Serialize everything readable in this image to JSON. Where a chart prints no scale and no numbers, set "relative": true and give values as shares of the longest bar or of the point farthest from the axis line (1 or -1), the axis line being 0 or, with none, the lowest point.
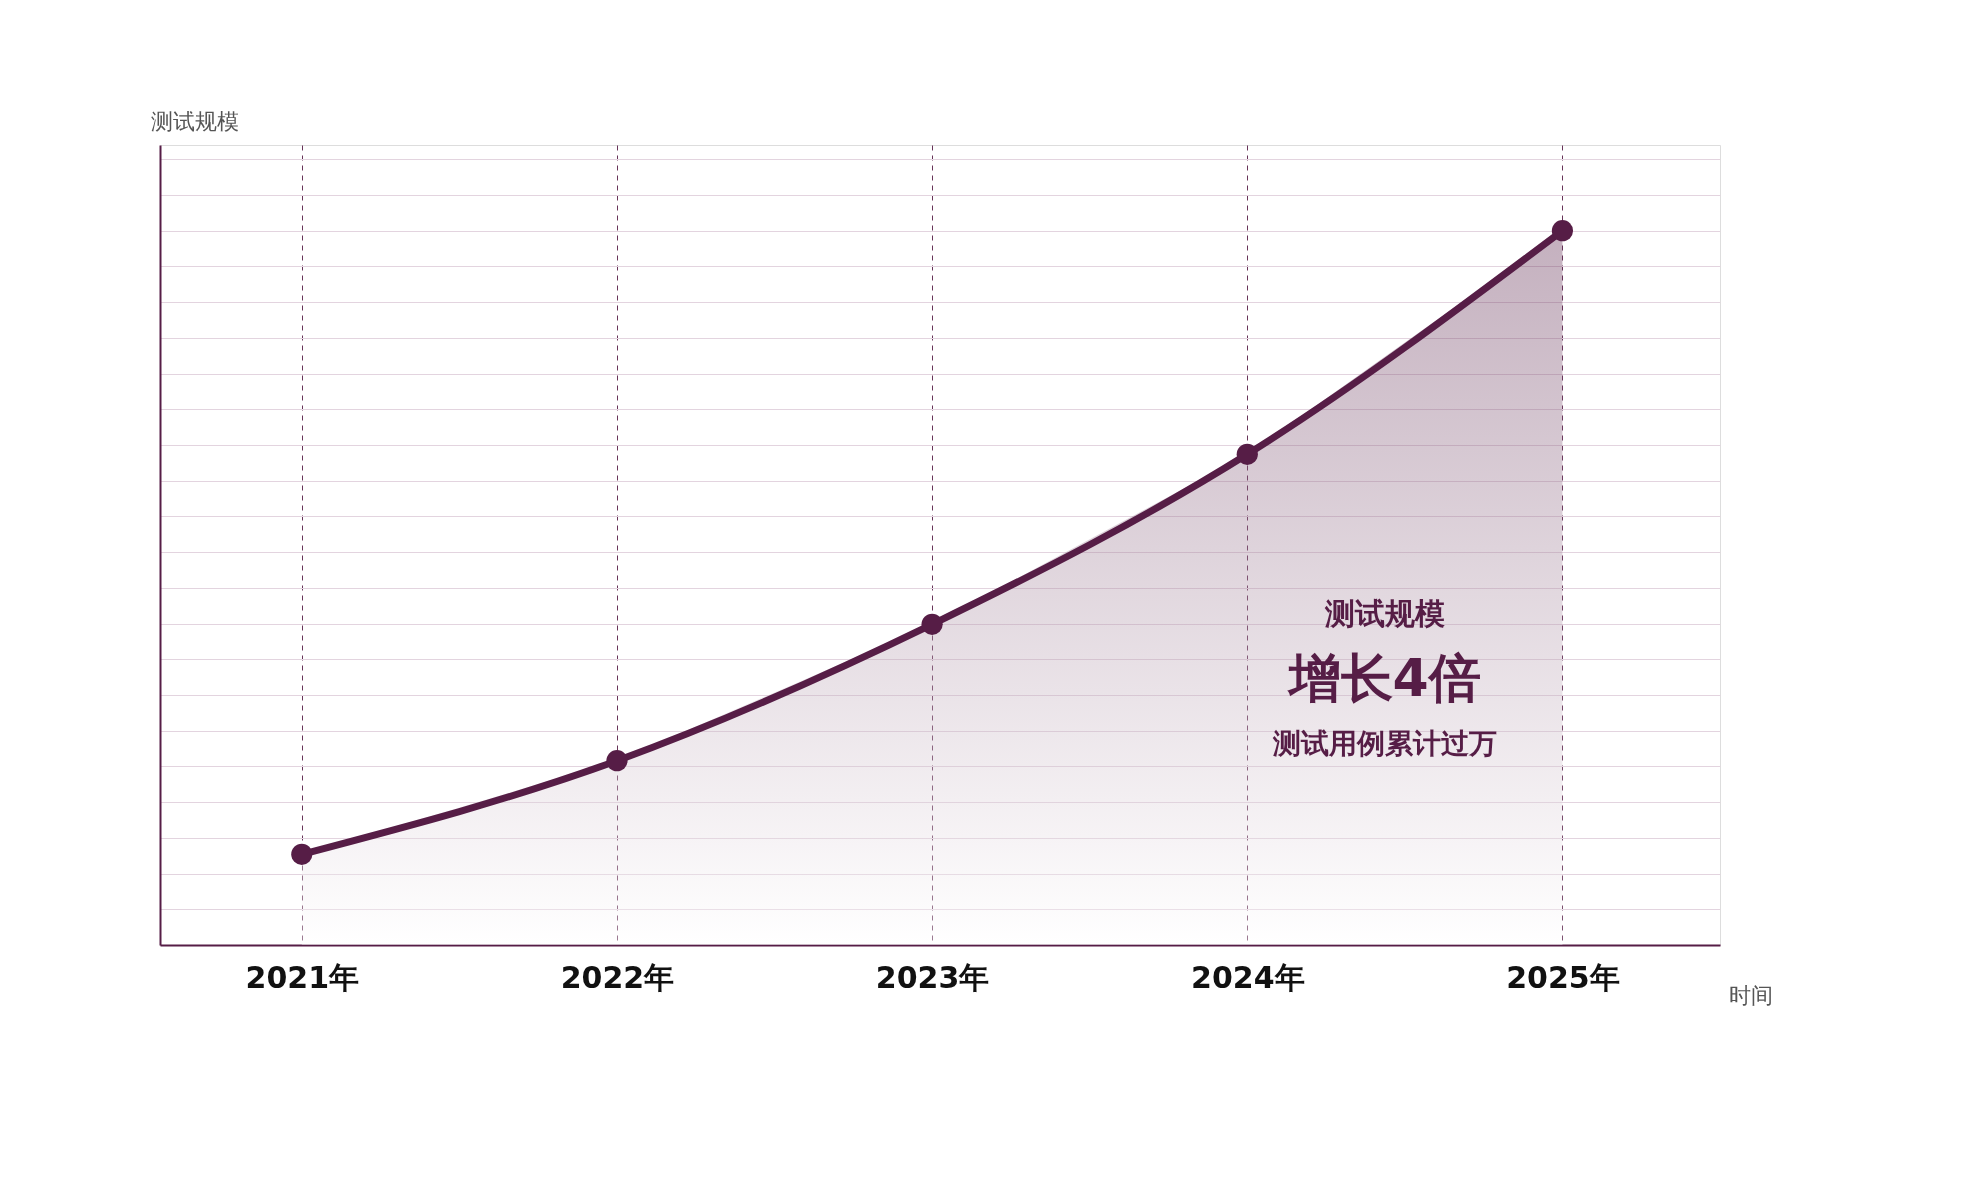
{
  "chart_data": {
    "type": "area",
    "relative": true,
    "ylabel": "测试规模",
    "xlabel": "时间",
    "categories": [
      "2021年",
      "2022年",
      "2023年",
      "2024年",
      "2025年"
    ],
    "series": [
      {
        "color": "#561d46",
        "values": [
          0.127,
          0.258,
          0.449,
          0.687,
          1
        ]
      }
    ],
    "marker": "circle",
    "grid": true,
    "annotations": [
      "测试规模",
      "增长4倍",
      "测试用例累计过万"
    ]
  }
}
